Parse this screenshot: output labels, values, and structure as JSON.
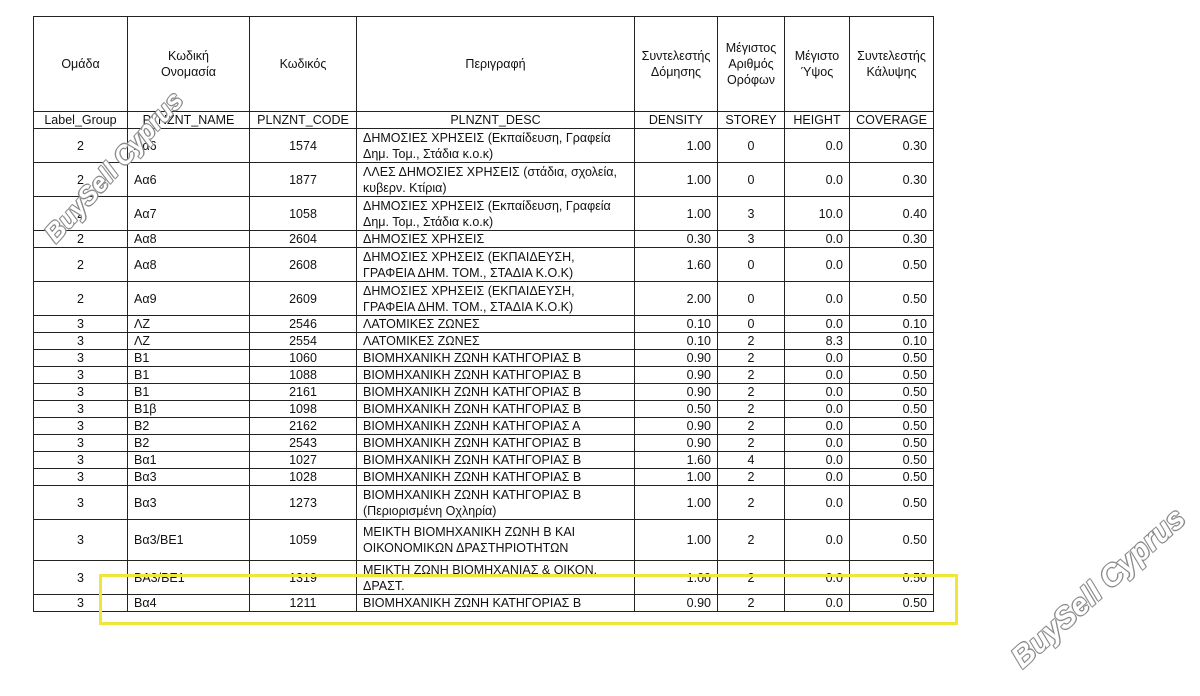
{
  "headers_greek": [
    "Ομάδα",
    "Κωδική\nΟνομασία",
    "Κωδικός",
    "Περιγραφή",
    "Συντελεστής\nΔόμησης",
    "Μέγιστος\nΑριθμός\nΟρόφων",
    "Μέγιστο\nΎψος",
    "Συντελεστής\nΚάλυψης"
  ],
  "headers_field": [
    "Label_Group",
    "PLNZNT_NAME",
    "PLNZNT_CODE",
    "PLNZNT_DESC",
    "DENSITY",
    "STOREY",
    "HEIGHT",
    "COVERAGE"
  ],
  "rows": [
    [
      "2",
      "Αα6",
      "1574",
      "ΔΗΜΟΣΙΕΣ ΧΡΗΣΕΙΣ (Εκπαίδευση, Γραφεία Δημ. Τομ., Στάδια κ.ο.κ)",
      "1.00",
      "0",
      "0.0",
      "0.30"
    ],
    [
      "2",
      "Αα6",
      "1877",
      "ΛΛΕΣ ΔΗΜΟΣΙΕΣ ΧΡΗΣΕΙΣ (στάδια, σχολεία, κυβερν. Κτίρια)",
      "1.00",
      "0",
      "0.0",
      "0.30"
    ],
    [
      "2",
      "Αα7",
      "1058",
      "ΔΗΜΟΣΙΕΣ ΧΡΗΣΕΙΣ (Εκπαίδευση, Γραφεία Δημ. Τομ., Στάδια κ.ο.κ)",
      "1.00",
      "3",
      "10.0",
      "0.40"
    ],
    [
      "2",
      "Αα8",
      "2604",
      "ΔΗΜΟΣΙΕΣ ΧΡΗΣΕΙΣ",
      "0.30",
      "3",
      "0.0",
      "0.30"
    ],
    [
      "2",
      "Αα8",
      "2608",
      "ΔΗΜΟΣΙΕΣ ΧΡΗΣΕΙΣ (ΕΚΠΑΙΔΕΥΣΗ, ΓΡΑΦΕΙΑ ΔΗΜ. ΤΟΜ., ΣΤΑΔΙΑ Κ.Ο.Κ)",
      "1.60",
      "0",
      "0.0",
      "0.50"
    ],
    [
      "2",
      "Αα9",
      "2609",
      "ΔΗΜΟΣΙΕΣ ΧΡΗΣΕΙΣ (ΕΚΠΑΙΔΕΥΣΗ, ΓΡΑΦΕΙΑ ΔΗΜ. ΤΟΜ., ΣΤΑΔΙΑ Κ.Ο.Κ)",
      "2.00",
      "0",
      "0.0",
      "0.50"
    ],
    [
      "3",
      "ΛΖ",
      "2546",
      "ΛΑΤΟΜΙΚΕΣ ΖΩΝΕΣ",
      "0.10",
      "0",
      "0.0",
      "0.10"
    ],
    [
      "3",
      "ΛΖ",
      "2554",
      "ΛΑΤΟΜΙΚΕΣ ΖΩΝΕΣ",
      "0.10",
      "2",
      "8.3",
      "0.10"
    ],
    [
      "3",
      "Β1",
      "1060",
      "ΒΙΟΜΗΧΑΝΙΚΗ ΖΩΝΗ ΚΑΤΗΓΟΡΙΑΣ Β",
      "0.90",
      "2",
      "0.0",
      "0.50"
    ],
    [
      "3",
      "Β1",
      "1088",
      "ΒΙΟΜΗΧΑΝΙΚΗ ΖΩΝΗ ΚΑΤΗΓΟΡΙΑΣ Β",
      "0.90",
      "2",
      "0.0",
      "0.50"
    ],
    [
      "3",
      "Β1",
      "2161",
      "ΒΙΟΜΗΧΑΝΙΚΗ ΖΩΝΗ ΚΑΤΗΓΟΡΙΑΣ Β",
      "0.90",
      "2",
      "0.0",
      "0.50"
    ],
    [
      "3",
      "Β1β",
      "1098",
      "ΒΙΟΜΗΧΑΝΙΚΗ ΖΩΝΗ ΚΑΤΗΓΟΡΙΑΣ Β",
      "0.50",
      "2",
      "0.0",
      "0.50"
    ],
    [
      "3",
      "Β2",
      "2162",
      "ΒΙΟΜΗΧΑΝΙΚΗ ΖΩΝΗ ΚΑΤΗΓΟΡΙΑΣ Α",
      "0.90",
      "2",
      "0.0",
      "0.50"
    ],
    [
      "3",
      "Β2",
      "2543",
      "ΒΙΟΜΗΧΑΝΙΚΗ ΖΩΝΗ ΚΑΤΗΓΟΡΙΑΣ Β",
      "0.90",
      "2",
      "0.0",
      "0.50"
    ],
    [
      "3",
      "Βα1",
      "1027",
      "ΒΙΟΜΗΧΑΝΙΚΗ ΖΩΝΗ ΚΑΤΗΓΟΡΙΑΣ Β",
      "1.60",
      "4",
      "0.0",
      "0.50"
    ],
    [
      "3",
      "Βα3",
      "1028",
      "ΒΙΟΜΗΧΑΝΙΚΗ ΖΩΝΗ ΚΑΤΗΓΟΡΙΑΣ Β",
      "1.00",
      "2",
      "0.0",
      "0.50"
    ],
    [
      "3",
      "Βα3",
      "1273",
      "ΒΙΟΜΗΧΑΝΙΚΗ ΖΩΝΗ ΚΑΤΗΓΟΡΙΑΣ Β (Περιορισμένη Οχληρία)",
      "1.00",
      "2",
      "0.0",
      "0.50"
    ],
    [
      "3",
      "Βα3/ΒΕ1",
      "1059",
      "ΜΕΙΚΤΗ ΒΙΟΜΗΧΑΝΙΚΗ ΖΩΝΗ Β ΚΑΙ ΟΙΚΟΝΟΜΙΚΩΝ ΔΡΑΣΤΗΡΙΟΤΗΤΩΝ",
      "1.00",
      "2",
      "0.0",
      "0.50"
    ],
    [
      "3",
      "ΒΑ3/ΒΕ1",
      "1319",
      "ΜΕΙΚΤΗ ΖΩΝΗ ΒΙΟΜΗΧΑΝΙΑΣ & ΟΙΚΟΝ. ΔΡΑΣΤ.",
      "1.00",
      "2",
      "0.0",
      "0.50"
    ],
    [
      "3",
      "Βα4",
      "1211",
      "ΒΙΟΜΗΧΑΝΙΚΗ ΖΩΝΗ ΚΑΤΗΓΟΡΙΑΣ Β",
      "0.90",
      "2",
      "0.0",
      "0.50"
    ]
  ],
  "highlighted_row_index": 17,
  "highlight_color": "#f0e63a",
  "watermark": "BuySell Cyprus"
}
